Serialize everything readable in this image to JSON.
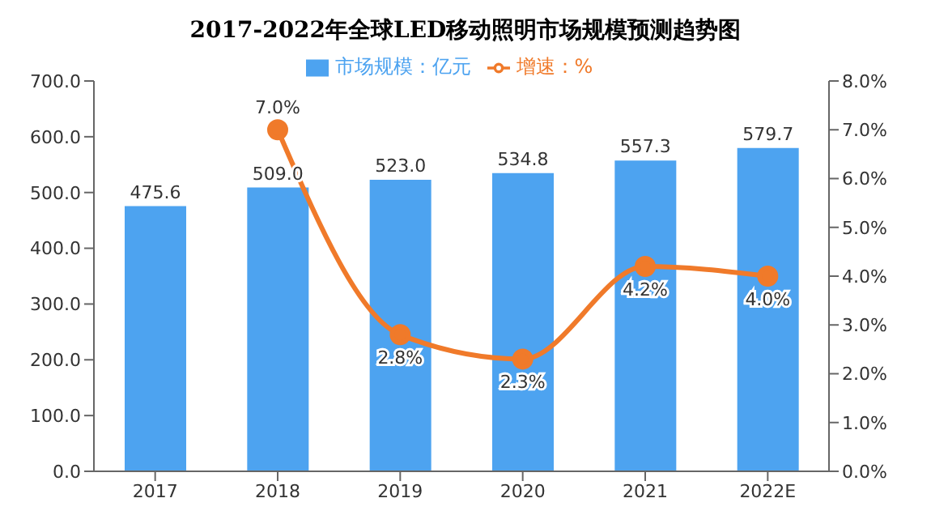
{
  "chart_data": {
    "type": "bar",
    "title": "2017-2022年全球LED移动照明市场规模预测趋势图",
    "categories": [
      "2017",
      "2018",
      "2019",
      "2020",
      "2021",
      "2022E"
    ],
    "series": [
      {
        "name": "市场规模：亿元",
        "color": "#4da3f0",
        "values": [
          475.6,
          509.0,
          523.0,
          534.8,
          557.3,
          579.7
        ],
        "value_labels": [
          "475.6",
          "509.0",
          "523.0",
          "534.8",
          "557.3",
          "579.7"
        ]
      },
      {
        "name": "增速：%",
        "type": "line",
        "axis": "y2",
        "color": "#f07a2a",
        "marker": "circle",
        "values": [
          null,
          7.0,
          2.8,
          2.3,
          4.2,
          4.0
        ],
        "value_labels": [
          null,
          "7.0%",
          "2.8%",
          "2.3%",
          "4.2%",
          "4.0%"
        ]
      }
    ],
    "ylim": [
      0,
      700
    ],
    "yticks": [
      {
        "value": 0,
        "label": "0.0"
      },
      {
        "value": 100,
        "label": "100.0"
      },
      {
        "value": 200,
        "label": "200.0"
      },
      {
        "value": 300,
        "label": "300.0"
      },
      {
        "value": 400,
        "label": "400.0"
      },
      {
        "value": 500,
        "label": "500.0"
      },
      {
        "value": 600,
        "label": "600.0"
      },
      {
        "value": 700,
        "label": "700.0"
      }
    ],
    "y2lim": [
      0,
      8
    ],
    "y2ticks": [
      {
        "value": 0,
        "label": "0.0%"
      },
      {
        "value": 1,
        "label": "1.0%"
      },
      {
        "value": 2,
        "label": "2.0%"
      },
      {
        "value": 3,
        "label": "3.0%"
      },
      {
        "value": 4,
        "label": "4.0%"
      },
      {
        "value": 5,
        "label": "5.0%"
      },
      {
        "value": 6,
        "label": "6.0%"
      },
      {
        "value": 7,
        "label": "7.0%"
      },
      {
        "value": 8,
        "label": "8.0%"
      }
    ],
    "legend": "top",
    "grid": false
  }
}
